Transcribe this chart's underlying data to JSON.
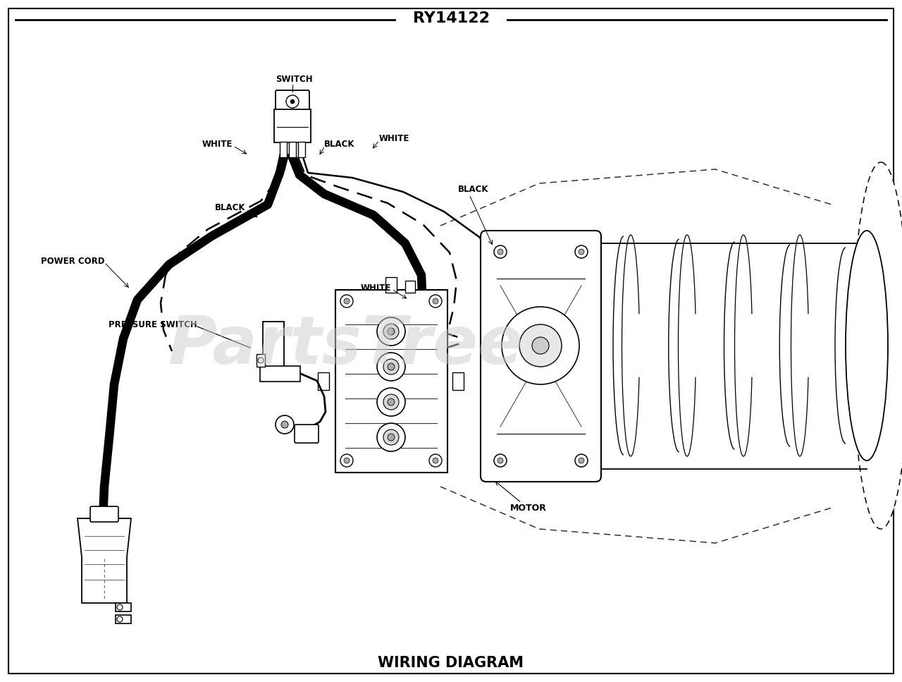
{
  "title": "RY14122",
  "subtitle": "WIRING DIAGRAM",
  "bg_color": "#ffffff",
  "labels": {
    "switch": "SWITCH",
    "white1": "WHITE",
    "black1": "BLACK",
    "white2": "WHITE",
    "black2": "BLACK",
    "black3": "BLACK",
    "white3": "WHITE",
    "power_cord": "POWER CORD",
    "pressure_switch": "PRESSURE SWITCH",
    "motor": "MOTOR"
  },
  "watermark": "PartsTree",
  "figsize": [
    12.8,
    9.67
  ]
}
